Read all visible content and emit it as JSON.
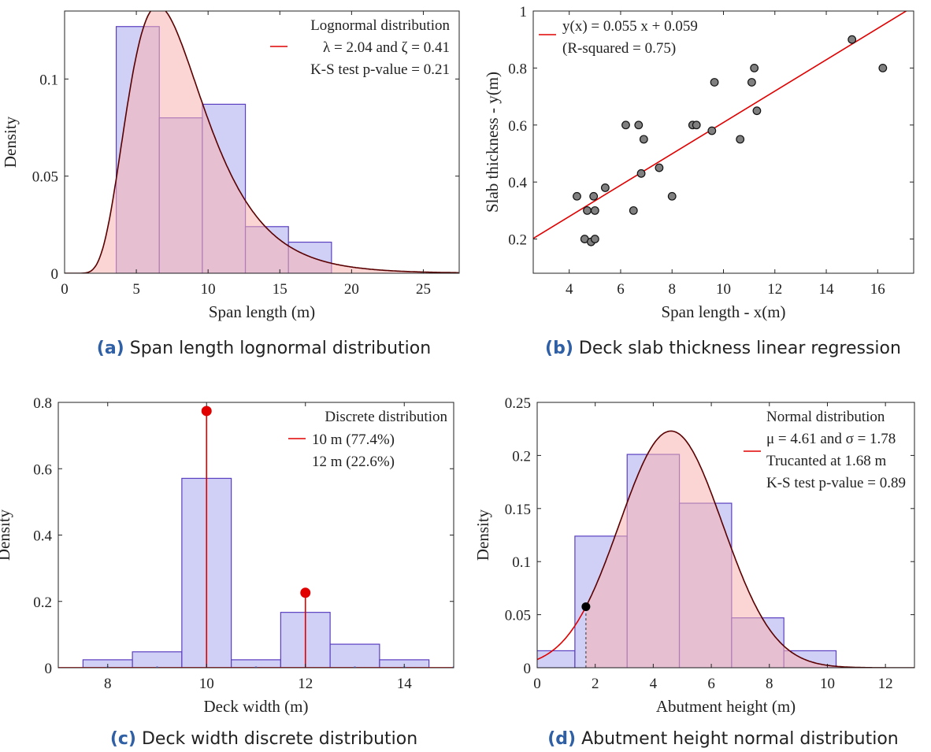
{
  "colors": {
    "hist_fill": "#c8c8f5",
    "hist_edge": "#5a3fc0",
    "pdf_fill": "#f7b0b0",
    "pdf_line": "#5a0000",
    "red": "#e00000",
    "caption_label": "#2f5fa5",
    "scatter_fill": "#808080"
  },
  "captions": {
    "a": {
      "label": "(a)",
      "text": " Span length lognormal distribution"
    },
    "b": {
      "label": "(b)",
      "text": " Deck slab thickness linear regression"
    },
    "c": {
      "label": "(c)",
      "text": " Deck width discrete distribution"
    },
    "d": {
      "label": "(d)",
      "text": " Abutment height normal distribution"
    }
  },
  "chart_data": [
    {
      "id": "a",
      "type": "bar",
      "title": "",
      "xlabel": "Span length (m)",
      "ylabel": "Density",
      "xlim": [
        0,
        27.5
      ],
      "ylim": [
        0,
        0.135
      ],
      "xticks": [
        0,
        5,
        10,
        15,
        20,
        25
      ],
      "xtick_labels": [
        "0",
        "5",
        "10",
        "15",
        "20",
        "25"
      ],
      "yticks": [
        0,
        0.05,
        0.1
      ],
      "ytick_labels": [
        "0",
        "0.05",
        "0.1"
      ],
      "bins": [
        {
          "x0": 3.6,
          "x1": 6.6,
          "value": 0.127
        },
        {
          "x0": 6.6,
          "x1": 9.6,
          "value": 0.08
        },
        {
          "x0": 9.6,
          "x1": 12.6,
          "value": 0.087
        },
        {
          "x0": 12.6,
          "x1": 15.6,
          "value": 0.024
        },
        {
          "x0": 15.6,
          "x1": 18.6,
          "value": 0.016
        }
      ],
      "pdf": {
        "dist": "lognormal",
        "lambda": 2.04,
        "zeta": 0.41
      },
      "legend": {
        "title": "Lognormal distribution",
        "lines": [
          "λ = 2.04 and ζ = 0.41",
          "K-S test p-value = 0.21"
        ]
      }
    },
    {
      "id": "b",
      "type": "scatter",
      "title": "",
      "xlabel": "Span length - x(m)",
      "ylabel": "Slab thickness - y(m)",
      "xlim": [
        2.6,
        17.4
      ],
      "ylim": [
        0.08,
        1.0
      ],
      "xticks": [
        4,
        6,
        8,
        10,
        12,
        14,
        16
      ],
      "xtick_labels": [
        "4",
        "6",
        "8",
        "10",
        "12",
        "14",
        "16"
      ],
      "yticks": [
        0.2,
        0.4,
        0.6,
        0.8,
        1.0
      ],
      "ytick_labels": [
        "0.2",
        "0.4",
        "0.6",
        "0.8",
        "1"
      ],
      "points": [
        [
          4.3,
          0.35
        ],
        [
          4.6,
          0.2
        ],
        [
          4.7,
          0.3
        ],
        [
          4.85,
          0.19
        ],
        [
          4.95,
          0.35
        ],
        [
          5.0,
          0.2
        ],
        [
          5.0,
          0.3
        ],
        [
          5.4,
          0.38
        ],
        [
          6.2,
          0.6
        ],
        [
          6.5,
          0.3
        ],
        [
          6.7,
          0.6
        ],
        [
          6.8,
          0.43
        ],
        [
          6.9,
          0.55
        ],
        [
          7.5,
          0.45
        ],
        [
          8.0,
          0.35
        ],
        [
          8.8,
          0.6
        ],
        [
          8.95,
          0.6
        ],
        [
          9.55,
          0.58
        ],
        [
          9.65,
          0.75
        ],
        [
          10.65,
          0.55
        ],
        [
          11.1,
          0.75
        ],
        [
          11.2,
          0.8
        ],
        [
          11.3,
          0.65
        ],
        [
          15.0,
          0.9
        ],
        [
          16.2,
          0.8
        ]
      ],
      "fit": {
        "slope": 0.055,
        "intercept": 0.059
      },
      "legend": {
        "lines": [
          "y(x) = 0.055 x + 0.059",
          "(R-squared = 0.75)"
        ]
      }
    },
    {
      "id": "c",
      "type": "bar",
      "title": "",
      "xlabel": "Deck width (m)",
      "ylabel": "Density",
      "xlim": [
        7.0,
        15.0
      ],
      "ylim": [
        0,
        0.8
      ],
      "xticks": [
        8,
        10,
        12,
        14
      ],
      "xtick_labels": [
        "8",
        "10",
        "12",
        "14"
      ],
      "yticks": [
        0,
        0.2,
        0.4,
        0.6,
        0.8
      ],
      "ytick_labels": [
        "0",
        "0.2",
        "0.4",
        "0.6",
        "0.8"
      ],
      "bins": [
        {
          "x0": 7.5,
          "x1": 8.5,
          "value": 0.024
        },
        {
          "x0": 8.5,
          "x1": 9.5,
          "value": 0.048
        },
        {
          "x0": 9.5,
          "x1": 10.5,
          "value": 0.571
        },
        {
          "x0": 10.5,
          "x1": 11.5,
          "value": 0.024
        },
        {
          "x0": 11.5,
          "x1": 12.5,
          "value": 0.167
        },
        {
          "x0": 12.5,
          "x1": 13.5,
          "value": 0.071
        },
        {
          "x0": 13.5,
          "x1": 14.5,
          "value": 0.024
        }
      ],
      "stems": [
        {
          "x": 10,
          "value": 0.774
        },
        {
          "x": 12,
          "value": 0.226
        }
      ],
      "legend": {
        "title": "Discrete distribution",
        "lines": [
          "10 m (77.4%)",
          "12 m (22.6%)"
        ]
      }
    },
    {
      "id": "d",
      "type": "bar",
      "title": "",
      "xlabel": "Abutment height (m)",
      "ylabel": "Density",
      "xlim": [
        0,
        13.0
      ],
      "ylim": [
        0,
        0.25
      ],
      "xticks": [
        0,
        2,
        4,
        6,
        8,
        10,
        12
      ],
      "xtick_labels": [
        "0",
        "2",
        "4",
        "6",
        "8",
        "10",
        "12"
      ],
      "yticks": [
        0,
        0.05,
        0.1,
        0.15,
        0.2,
        0.25
      ],
      "ytick_labels": [
        "0",
        "0.05",
        "0.1",
        "0.15",
        "0.2",
        "0.25"
      ],
      "bins": [
        {
          "x0": -0.6,
          "x1": 1.3,
          "value": 0.016
        },
        {
          "x0": 1.3,
          "x1": 3.1,
          "value": 0.124
        },
        {
          "x0": 3.1,
          "x1": 4.9,
          "value": 0.201
        },
        {
          "x0": 4.9,
          "x1": 6.7,
          "value": 0.155
        },
        {
          "x0": 6.7,
          "x1": 8.5,
          "value": 0.047
        },
        {
          "x0": 8.5,
          "x1": 10.3,
          "value": 0.016
        }
      ],
      "pdf": {
        "dist": "normal",
        "mu": 4.61,
        "sigma": 1.78,
        "truncate": 1.68,
        "peak_value": 0.223
      },
      "legend": {
        "title": "Normal distribution",
        "lines": [
          "μ = 4.61 and σ = 1.78",
          "Trucanted at 1.68 m",
          "K-S test p-value = 0.89"
        ]
      }
    }
  ]
}
